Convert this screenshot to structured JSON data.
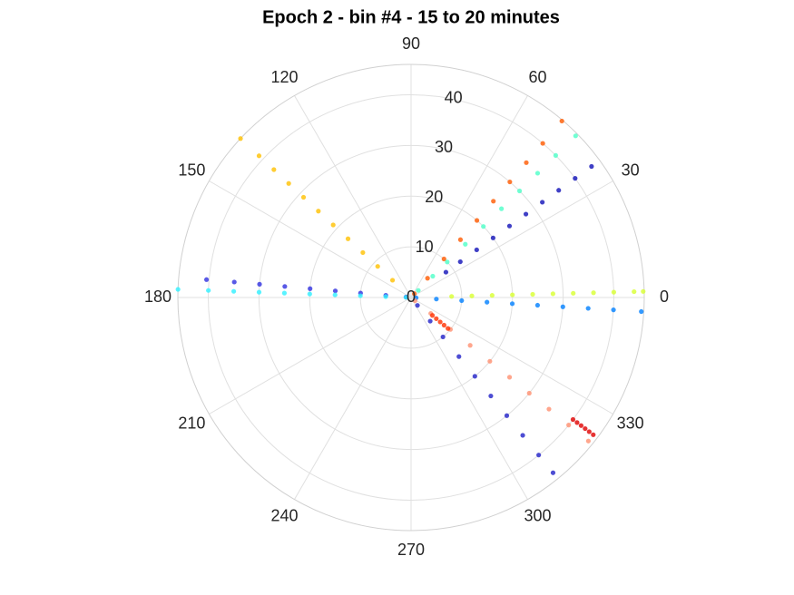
{
  "chart_data": {
    "type": "polar-scatter",
    "title": "Epoch 2 - bin #4 - 15 to 20 minutes",
    "rlim": [
      0,
      46
    ],
    "rticks": [
      0,
      10,
      20,
      30,
      40
    ],
    "thetaticks": [
      0,
      30,
      60,
      90,
      120,
      150,
      180,
      210,
      240,
      270,
      300,
      330
    ],
    "grid": true,
    "series": [
      {
        "color": "#ff5a00",
        "theta": [
          49.5,
          49.5,
          49.5,
          49.5,
          49.5,
          49.5,
          49.5,
          49.5,
          49.5,
          49.5
        ],
        "r": [
          1,
          5,
          10,
          15,
          20,
          25,
          30,
          35,
          40,
          45.8
        ]
      },
      {
        "color": "#4dffc8",
        "theta": [
          44.5,
          44.5,
          44.5,
          44.5,
          44.5,
          44.5,
          44.5,
          44.5,
          44.5,
          44.5
        ],
        "r": [
          2,
          6,
          10,
          15,
          20,
          25,
          30,
          35,
          40,
          45.5
        ]
      },
      {
        "color": "#1010b8",
        "theta": [
          36,
          36,
          36,
          36,
          36,
          36,
          36,
          36,
          36,
          36
        ],
        "r": [
          8.5,
          12,
          16,
          20,
          24,
          28,
          32,
          36,
          40,
          44
        ]
      },
      {
        "color": "#ffc000",
        "theta": [
          137,
          137,
          137,
          137,
          137,
          137,
          137,
          137,
          137,
          137,
          137
        ],
        "r": [
          5,
          9,
          13,
          17,
          21,
          25,
          29,
          33,
          37,
          41,
          46
        ]
      },
      {
        "color": "#d8ff30",
        "theta": [
          1.5,
          1.5,
          1.5,
          1.5,
          1.5,
          1.5,
          1.5,
          1.5,
          1.5,
          1.5,
          1.5
        ],
        "r": [
          8,
          12,
          16,
          20,
          24,
          28,
          32,
          36,
          40,
          44,
          45.8
        ]
      },
      {
        "color": "#0080ff",
        "theta": [
          356.5,
          356.5,
          356.5,
          356.5,
          356.5,
          356.5,
          356.5,
          356.5,
          356.5,
          356.5
        ],
        "r": [
          1,
          5,
          10,
          15,
          20,
          25,
          30,
          35,
          40,
          45.5
        ]
      },
      {
        "color": "#3030e0",
        "theta": [
          175,
          175,
          175,
          175,
          175,
          175,
          175,
          175,
          175
        ],
        "r": [
          1,
          5,
          10,
          15,
          20,
          25,
          30,
          35,
          40.5
        ]
      },
      {
        "color": "#30f0ff",
        "theta": [
          178,
          178,
          178,
          178,
          178,
          178,
          178,
          178,
          178,
          178
        ],
        "r": [
          1,
          5,
          10,
          15,
          20,
          25,
          30,
          35,
          40,
          46
        ]
      },
      {
        "color": "#ff9070",
        "theta": [
          321,
          321,
          321,
          321,
          321,
          321,
          321,
          321,
          321,
          321
        ],
        "r": [
          1,
          5,
          10,
          15,
          20,
          25,
          30,
          35,
          40,
          45
        ]
      },
      {
        "color": "#e00000",
        "theta": [
          323,
          323,
          323,
          323,
          323,
          323
        ],
        "r": [
          40,
          41,
          42,
          43,
          44,
          45
        ]
      },
      {
        "color": "#ff3000",
        "theta": [
          320,
          320,
          320,
          320,
          320
        ],
        "r": [
          5.5,
          6.5,
          7.5,
          8.5,
          9.5
        ]
      },
      {
        "color": "#2020c8",
        "theta": [
          309,
          309,
          309,
          309,
          309,
          309,
          309,
          309,
          309,
          309
        ],
        "r": [
          2,
          6,
          10,
          15,
          20,
          25,
          30,
          35,
          40,
          44.5
        ]
      }
    ]
  }
}
